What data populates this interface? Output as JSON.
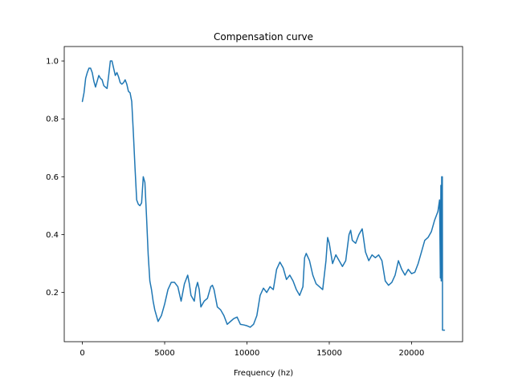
{
  "chart_data": {
    "type": "line",
    "title": "Compensation curve",
    "xlabel": "Frequency (hz)",
    "ylabel": "",
    "xlim": [
      -1100,
      23100
    ],
    "ylim": [
      0.03,
      1.05
    ],
    "xticks": [
      0,
      5000,
      10000,
      15000,
      20000
    ],
    "yticks": [
      0.2,
      0.4,
      0.6,
      0.8,
      1.0
    ],
    "xtick_labels": [
      "0",
      "5000",
      "10000",
      "15000",
      "20000"
    ],
    "ytick_labels": [
      "0.2",
      "0.4",
      "0.6",
      "0.8",
      "1.0"
    ],
    "grid": false,
    "line_color": "#1f77b4",
    "series": [
      {
        "x": [
          0,
          100,
          200,
          300,
          400,
          500,
          600,
          700,
          800,
          900,
          1000,
          1100,
          1200,
          1300,
          1400,
          1500,
          1600,
          1700,
          1800,
          1900,
          2000,
          2100,
          2200,
          2300,
          2400,
          2500,
          2600,
          2700,
          2800,
          2900,
          3000,
          3100,
          3200,
          3300,
          3400,
          3500,
          3600,
          3700,
          3800,
          3900,
          4000,
          4100,
          4200,
          4300,
          4400,
          4600,
          4800,
          5000,
          5200,
          5400,
          5600,
          5800,
          6000,
          6200,
          6400,
          6500,
          6600,
          6800,
          6900,
          7000,
          7100,
          7200,
          7400,
          7600,
          7800,
          7900,
          8000,
          8200,
          8400,
          8600,
          8800,
          9000,
          9200,
          9400,
          9600,
          9800,
          10000,
          10200,
          10400,
          10600,
          10800,
          11000,
          11200,
          11400,
          11600,
          11800,
          12000,
          12100,
          12200,
          12400,
          12600,
          12800,
          13000,
          13200,
          13400,
          13500,
          13600,
          13800,
          14000,
          14200,
          14400,
          14600,
          14800,
          14900,
          15000,
          15200,
          15400,
          15600,
          15800,
          16000,
          16200,
          16300,
          16400,
          16600,
          16800,
          17000,
          17200,
          17400,
          17600,
          17800,
          18000,
          18200,
          18400,
          18600,
          18800,
          19000,
          19200,
          19400,
          19600,
          19800,
          20000,
          20200,
          20400,
          20600,
          20800,
          21000,
          21200,
          21400,
          21600,
          21700,
          21750,
          21780,
          21800,
          21830,
          21850,
          21870,
          21880,
          21900,
          22000
        ],
        "y": [
          0.86,
          0.89,
          0.94,
          0.96,
          0.975,
          0.975,
          0.96,
          0.93,
          0.91,
          0.93,
          0.95,
          0.94,
          0.935,
          0.915,
          0.91,
          0.905,
          0.95,
          1.0,
          1.0,
          0.975,
          0.95,
          0.96,
          0.945,
          0.925,
          0.92,
          0.925,
          0.935,
          0.92,
          0.895,
          0.89,
          0.86,
          0.75,
          0.63,
          0.52,
          0.505,
          0.5,
          0.51,
          0.6,
          0.58,
          0.46,
          0.33,
          0.24,
          0.21,
          0.17,
          0.14,
          0.1,
          0.12,
          0.16,
          0.21,
          0.235,
          0.235,
          0.22,
          0.17,
          0.23,
          0.26,
          0.23,
          0.19,
          0.17,
          0.215,
          0.235,
          0.21,
          0.15,
          0.17,
          0.18,
          0.22,
          0.225,
          0.21,
          0.15,
          0.14,
          0.12,
          0.09,
          0.1,
          0.11,
          0.115,
          0.09,
          0.088,
          0.085,
          0.08,
          0.09,
          0.12,
          0.19,
          0.215,
          0.2,
          0.22,
          0.21,
          0.28,
          0.305,
          0.295,
          0.285,
          0.245,
          0.26,
          0.24,
          0.21,
          0.19,
          0.22,
          0.32,
          0.335,
          0.31,
          0.26,
          0.23,
          0.22,
          0.21,
          0.31,
          0.39,
          0.37,
          0.3,
          0.33,
          0.31,
          0.29,
          0.31,
          0.4,
          0.415,
          0.38,
          0.37,
          0.4,
          0.42,
          0.34,
          0.31,
          0.33,
          0.32,
          0.33,
          0.31,
          0.24,
          0.225,
          0.235,
          0.26,
          0.31,
          0.28,
          0.26,
          0.28,
          0.265,
          0.27,
          0.3,
          0.34,
          0.38,
          0.39,
          0.41,
          0.45,
          0.48,
          0.52,
          0.25,
          0.57,
          0.24,
          0.6,
          0.59,
          0.6,
          0.07,
          0.07,
          0.07
        ]
      }
    ]
  }
}
